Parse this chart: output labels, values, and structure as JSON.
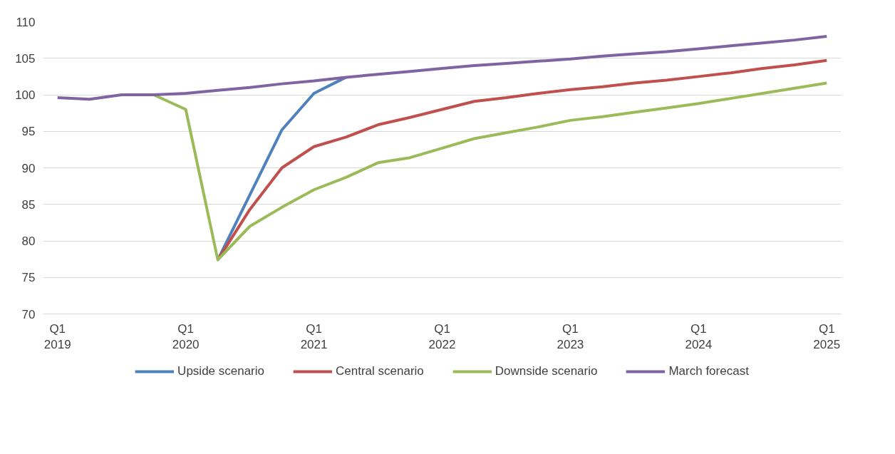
{
  "chart_data": {
    "type": "line",
    "categories": [
      "Q1\n2019",
      null,
      null,
      null,
      "Q1\n2020",
      null,
      null,
      null,
      "Q1\n2021",
      null,
      null,
      null,
      "Q1\n2022",
      null,
      null,
      null,
      "Q1\n2023",
      null,
      null,
      null,
      "Q1\n2024",
      null,
      null,
      null,
      "Q1\n2025"
    ],
    "series": [
      {
        "name": "Upside scenario",
        "color": "#4f81bd",
        "values": [
          null,
          null,
          null,
          null,
          null,
          77.4,
          86.3,
          95.2,
          100.2,
          102.4,
          null,
          null,
          null,
          null,
          null,
          null,
          null,
          null,
          null,
          null,
          null,
          null,
          null,
          null,
          null
        ]
      },
      {
        "name": "Central scenario",
        "color": "#c0504d",
        "values": [
          null,
          null,
          null,
          null,
          null,
          77.4,
          84.3,
          90.0,
          92.9,
          94.2,
          95.9,
          96.9,
          98.0,
          99.1,
          99.6,
          100.2,
          100.7,
          101.1,
          101.6,
          102.0,
          102.5,
          103.0,
          103.6,
          104.1,
          104.7
        ]
      },
      {
        "name": "Downside scenario",
        "color": "#9bbb59",
        "values": [
          null,
          null,
          null,
          100.0,
          98.0,
          77.4,
          82.0,
          84.6,
          87.0,
          88.7,
          90.7,
          91.4,
          92.7,
          94.0,
          94.8,
          95.6,
          96.5,
          97.0,
          97.6,
          98.2,
          98.8,
          99.5,
          100.2,
          100.9,
          101.6
        ]
      },
      {
        "name": "March forecast",
        "color": "#8064a2",
        "values": [
          99.6,
          99.4,
          100.0,
          100.0,
          100.2,
          100.6,
          101.0,
          101.5,
          101.9,
          102.4,
          102.8,
          103.2,
          103.6,
          104.0,
          104.3,
          104.6,
          104.9,
          105.3,
          105.6,
          105.9,
          106.3,
          106.7,
          107.1,
          107.5,
          108.0
        ]
      }
    ],
    "ylim": [
      70,
      110
    ],
    "yticks": [
      70,
      75,
      80,
      85,
      90,
      95,
      100,
      105,
      110
    ],
    "grid": "y",
    "legend": "bottom",
    "marker": "none",
    "line_style": "solid"
  }
}
